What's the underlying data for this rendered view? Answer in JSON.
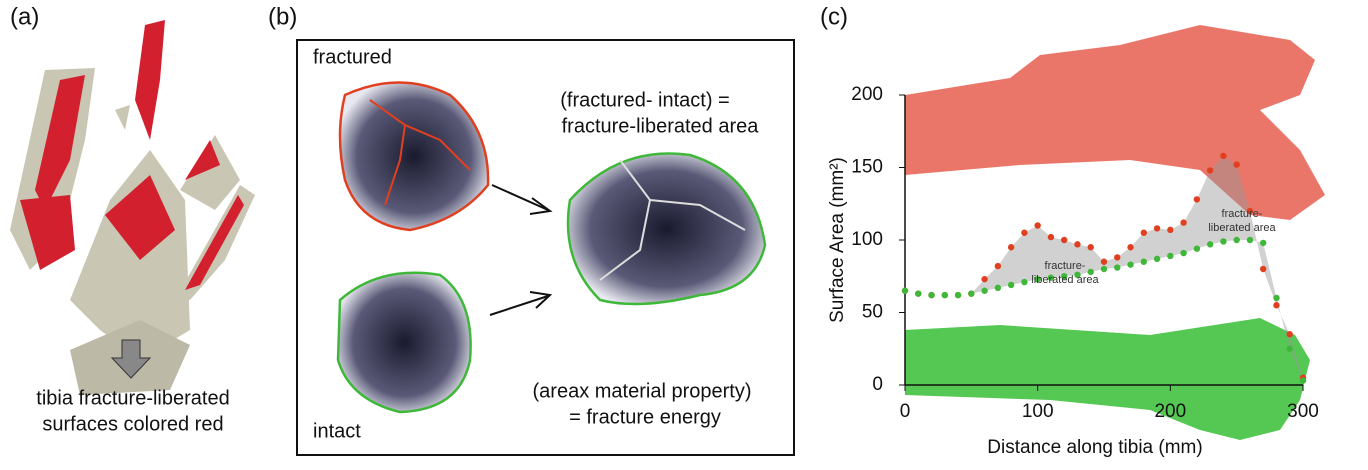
{
  "panels": {
    "a": {
      "label": "(a)",
      "caption": [
        "tibia fracture-liberated",
        "surfaces colored red"
      ]
    },
    "b": {
      "label": "(b)",
      "fractured": "fractured",
      "intact": "intact",
      "equation1": [
        "(fractured- intact) =",
        "fracture-liberated area"
      ],
      "equation2": [
        "(areax material property)",
        "= fracture energy"
      ]
    },
    "c": {
      "label": "(c)"
    }
  },
  "chart_data": {
    "type": "scatter",
    "x_label": "Distance along tibia (mm)",
    "y_label": "Surface Area (mm²)",
    "xlim": [
      0,
      300
    ],
    "xticks": [
      0,
      100,
      200,
      300
    ],
    "ylim": [
      0,
      200
    ],
    "yticks": [
      0,
      50,
      100,
      150,
      200
    ],
    "x": [
      0,
      10,
      20,
      30,
      40,
      50,
      60,
      70,
      80,
      90,
      100,
      110,
      120,
      130,
      140,
      150,
      160,
      170,
      180,
      190,
      200,
      210,
      220,
      230,
      240,
      250,
      260,
      270,
      280,
      290,
      300
    ],
    "series": [
      {
        "color": "#e0401f",
        "values": [
          65,
          63,
          62,
          62,
          62,
          63,
          73,
          82,
          95,
          105,
          110,
          102,
          100,
          97,
          95,
          85,
          88,
          95,
          105,
          108,
          107,
          112,
          128,
          148,
          158,
          152,
          120,
          80,
          55,
          35,
          5
        ]
      },
      {
        "color": "#3fb83a",
        "values": [
          65,
          63,
          62,
          62,
          62,
          63,
          65,
          67,
          69,
          71,
          73,
          74,
          75,
          76,
          78,
          80,
          81,
          83,
          85,
          87,
          89,
          91,
          94,
          97,
          99,
          100,
          100,
          98,
          60,
          25,
          3
        ]
      }
    ],
    "annotations": [
      [
        "fracture-",
        "liberated area"
      ],
      [
        "fracture-",
        "liberated area"
      ]
    ]
  }
}
